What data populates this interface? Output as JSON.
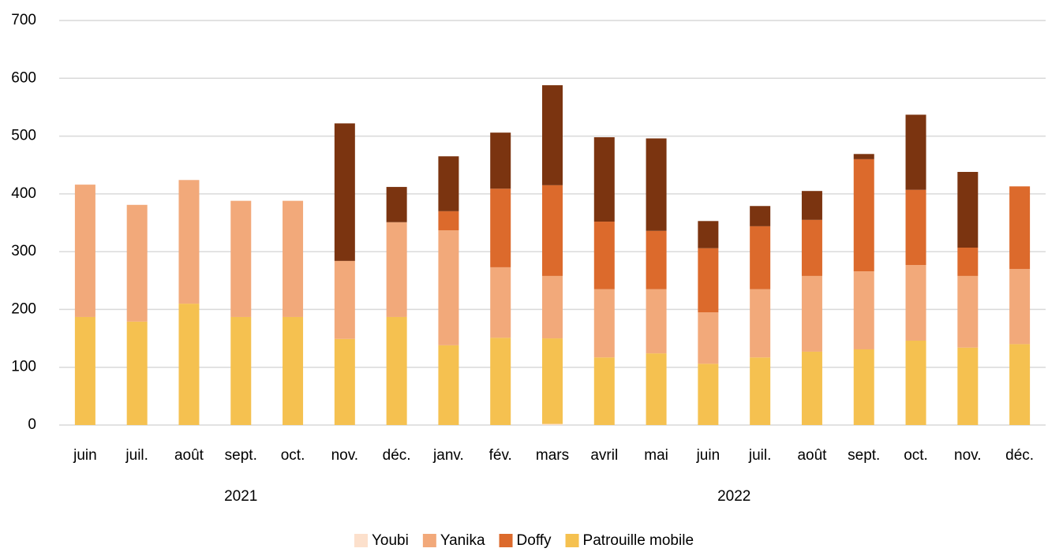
{
  "chart_data": {
    "type": "stacked_bar",
    "categories": [
      "juin",
      "juil.",
      "août",
      "sept.",
      "oct.",
      "nov.",
      "déc.",
      "janv.",
      "fév.",
      "mars",
      "avril",
      "mai",
      "juin",
      "juil.",
      "août",
      "sept.",
      "oct.",
      "nov.",
      "déc."
    ],
    "x_groups": [
      {
        "label": "2021",
        "size": 7
      },
      {
        "label": "2022",
        "size": 12
      }
    ],
    "series": [
      {
        "name": "Youbi",
        "color": "#fce0cc",
        "values": [
          0,
          0,
          0,
          0,
          0,
          0,
          0,
          0,
          0,
          2,
          0,
          0,
          0,
          0,
          0,
          0,
          0,
          0,
          0
        ]
      },
      {
        "name": "Yanika",
        "color": "#f2a97a",
        "values": [
          229,
          202,
          214,
          201,
          201,
          135,
          164,
          199,
          122,
          108,
          118,
          111,
          89,
          118,
          131,
          135,
          131,
          124,
          130
        ]
      },
      {
        "name": "Doffy",
        "color": "#dc6a2c",
        "values": [
          0,
          0,
          0,
          0,
          0,
          0,
          0,
          33,
          136,
          157,
          117,
          101,
          111,
          109,
          97,
          194,
          130,
          49,
          143
        ]
      },
      {
        "name": "Patrouille mobile",
        "color": "#f5c150",
        "values": [
          187,
          179,
          210,
          187,
          187,
          149,
          187,
          138,
          151,
          148,
          117,
          124,
          106,
          117,
          127,
          131,
          146,
          134,
          140
        ]
      },
      {
        "name": null,
        "color": "#7b3410",
        "values": [
          0,
          0,
          0,
          0,
          0,
          238,
          61,
          95,
          97,
          173,
          146,
          160,
          47,
          35,
          50,
          9,
          130,
          131,
          0
        ]
      }
    ],
    "ylim": [
      0,
      700
    ],
    "yticks": [
      0,
      100,
      200,
      300,
      400,
      500,
      600,
      700
    ],
    "grid": true,
    "legend": "bottom"
  }
}
